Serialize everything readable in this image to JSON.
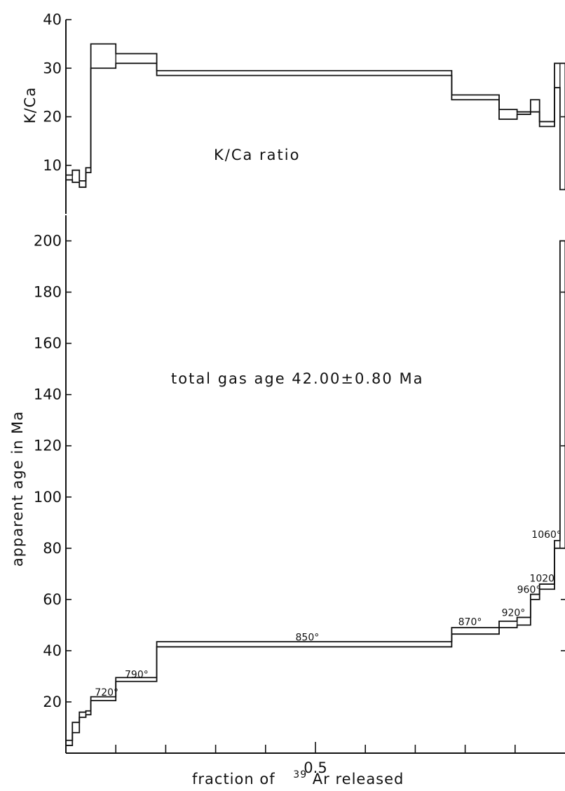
{
  "chart_data": [
    {
      "type": "line",
      "panel": "top",
      "ylabel": "K/Ca",
      "ylim": [
        0,
        40
      ],
      "yticks": [
        10,
        20,
        30,
        40
      ],
      "xlim": [
        0,
        1
      ],
      "annotation": "K/Ca ratio",
      "grid": false,
      "steps": [
        {
          "x0": 0.0,
          "x1": 0.013,
          "low": 7.0,
          "high": 8.0
        },
        {
          "x0": 0.013,
          "x1": 0.027,
          "low": 6.5,
          "high": 9.0
        },
        {
          "x0": 0.027,
          "x1": 0.04,
          "low": 5.5,
          "high": 6.8
        },
        {
          "x0": 0.04,
          "x1": 0.05,
          "low": 8.5,
          "high": 9.5
        },
        {
          "x0": 0.05,
          "x1": 0.1,
          "low": 30.0,
          "high": 35.0
        },
        {
          "x0": 0.1,
          "x1": 0.182,
          "low": 31.0,
          "high": 33.0
        },
        {
          "x0": 0.182,
          "x1": 0.773,
          "low": 28.5,
          "high": 29.5
        },
        {
          "x0": 0.773,
          "x1": 0.868,
          "low": 23.5,
          "high": 24.5
        },
        {
          "x0": 0.868,
          "x1": 0.904,
          "low": 19.5,
          "high": 21.5
        },
        {
          "x0": 0.904,
          "x1": 0.931,
          "low": 20.5,
          "high": 21.0
        },
        {
          "x0": 0.931,
          "x1": 0.949,
          "low": 21.0,
          "high": 23.5
        },
        {
          "x0": 0.949,
          "x1": 0.979,
          "low": 18.0,
          "high": 19.0
        },
        {
          "x0": 0.979,
          "x1": 0.99,
          "low": 26.0,
          "high": 31.0
        },
        {
          "x0": 0.99,
          "x1": 1.0,
          "low": 5.0,
          "high": 31.0
        }
      ]
    },
    {
      "type": "line",
      "panel": "bottom",
      "ylabel": "apparent age in Ma",
      "xlabel_prefix": "fraction of",
      "xlabel_sup": "39",
      "xlabel_main": "Ar released",
      "ylim": [
        0,
        210
      ],
      "yticks": [
        20,
        40,
        60,
        80,
        100,
        120,
        140,
        160,
        180,
        200
      ],
      "xlim": [
        0,
        1
      ],
      "xtick_labels": [
        {
          "x": 0.5,
          "label": "0.5"
        }
      ],
      "annotation": "total gas age  42.00±0.80 Ma",
      "grid": false,
      "steps": [
        {
          "x0": 0.0,
          "x1": 0.013,
          "low": 3.0,
          "high": 5.0
        },
        {
          "x0": 0.013,
          "x1": 0.027,
          "low": 8.0,
          "high": 12.0
        },
        {
          "x0": 0.027,
          "x1": 0.04,
          "low": 14.0,
          "high": 16.0
        },
        {
          "x0": 0.04,
          "x1": 0.05,
          "low": 15.0,
          "high": 16.5
        },
        {
          "x0": 0.05,
          "x1": 0.1,
          "low": 20.5,
          "high": 22.0
        },
        {
          "x0": 0.1,
          "x1": 0.182,
          "low": 28.0,
          "high": 29.5
        },
        {
          "x0": 0.182,
          "x1": 0.773,
          "low": 41.5,
          "high": 43.5
        },
        {
          "x0": 0.773,
          "x1": 0.868,
          "low": 46.5,
          "high": 49.0
        },
        {
          "x0": 0.868,
          "x1": 0.904,
          "low": 49.0,
          "high": 51.5
        },
        {
          "x0": 0.904,
          "x1": 0.931,
          "low": 50.0,
          "high": 53.0
        },
        {
          "x0": 0.931,
          "x1": 0.949,
          "low": 60.0,
          "high": 62.0
        },
        {
          "x0": 0.949,
          "x1": 0.979,
          "low": 64.0,
          "high": 66.0
        },
        {
          "x0": 0.979,
          "x1": 0.99,
          "low": 80.0,
          "high": 83.0
        },
        {
          "x0": 0.99,
          "x1": 1.0,
          "low": 80.0,
          "high": 200.0
        }
      ],
      "temperature_labels": [
        {
          "label": "720°",
          "x": 0.058,
          "y": 22.5
        },
        {
          "label": "790°",
          "x": 0.118,
          "y": 29.5
        },
        {
          "label": "850°",
          "x": 0.46,
          "y": 44.0
        },
        {
          "label": "870°",
          "x": 0.786,
          "y": 50.0
        },
        {
          "label": "920°",
          "x": 0.873,
          "y": 53.5
        },
        {
          "label": "960°",
          "x": 0.904,
          "y": 62.5
        },
        {
          "label": "1020",
          "x": 0.929,
          "y": 67.0
        },
        {
          "label": "1060°",
          "x": 0.933,
          "y": 84.0
        }
      ]
    }
  ]
}
